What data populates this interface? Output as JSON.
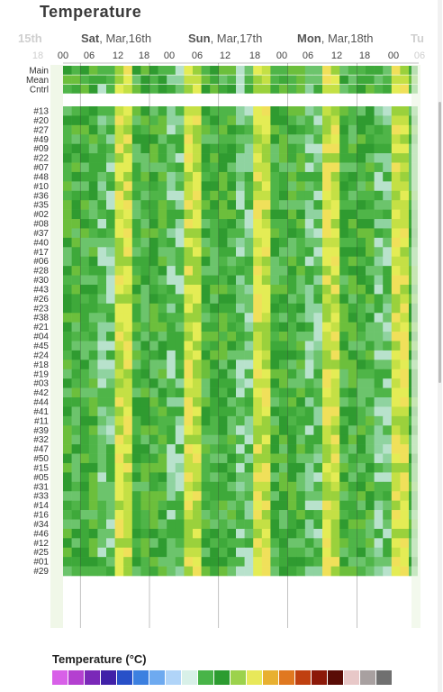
{
  "page": {
    "title": "Temperature",
    "legend_title": "Temperature (°C)",
    "legend_colors": [
      "#d860e8",
      "#b440d0",
      "#7a28b8",
      "#4020a8",
      "#2850c8",
      "#3c80e0",
      "#6eaaf0",
      "#b0d4f8",
      "#d8f0e8",
      "#48b448",
      "#2c9c30",
      "#9cd24c",
      "#e8e85a",
      "#e8b030",
      "#e07820",
      "#c04010",
      "#8c1808",
      "#5a0c06",
      "#e8c8c8",
      "#a8a0a0",
      "#707070"
    ]
  },
  "chart_data": {
    "type": "heatmap",
    "title": "Temperature",
    "legend_title": "Temperature (°C)",
    "x_day_labels": [
      {
        "bold": "15th",
        "rest": ""
      },
      {
        "bold": "Sat",
        "rest": ", Mar,16th"
      },
      {
        "bold": "Sun",
        "rest": ", Mar,17th"
      },
      {
        "bold": "Mon",
        "rest": ", Mar,18th"
      },
      {
        "bold": "Tu",
        "rest": ""
      }
    ],
    "x_hour_labels": [
      "18",
      "00",
      "06",
      "12",
      "18",
      "00",
      "06",
      "12",
      "18",
      "00",
      "06",
      "12",
      "18",
      "00",
      "06"
    ],
    "top_rows": [
      "Main",
      "Mean",
      "Cntrl"
    ],
    "rows": [
      "#13",
      "#20",
      "#27",
      "#49",
      "#09",
      "#22",
      "#07",
      "#48",
      "#10",
      "#36",
      "#35",
      "#02",
      "#08",
      "#37",
      "#40",
      "#17",
      "#06",
      "#28",
      "#30",
      "#43",
      "#26",
      "#23",
      "#38",
      "#21",
      "#04",
      "#45",
      "#24",
      "#18",
      "#19",
      "#03",
      "#42",
      "#44",
      "#41",
      "#11",
      "#39",
      "#32",
      "#47",
      "#50",
      "#15",
      "#05",
      "#31",
      "#33",
      "#14",
      "#16",
      "#34",
      "#46",
      "#12",
      "#25",
      "#01",
      "#29"
    ]
  }
}
